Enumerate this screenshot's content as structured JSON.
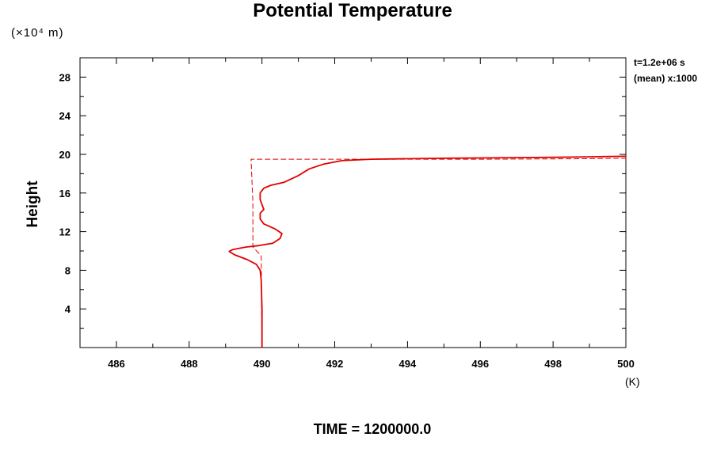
{
  "chart_data": {
    "type": "line",
    "title": "Potential Temperature",
    "ylabel": "Height",
    "y_unit": "(×10⁴ m)",
    "xunit": "(K)",
    "annotation_time": "t=1.2e+06 s",
    "annotation_mean": "(mean) x:1000",
    "footer": "TIME = 1200000.0",
    "xlim": [
      485,
      500
    ],
    "ylim": [
      0,
      30
    ],
    "x_ticks": [
      486,
      488,
      490,
      492,
      494,
      496,
      498,
      500
    ],
    "y_ticks": [
      4,
      8,
      12,
      16,
      20,
      24,
      28
    ],
    "grid": false,
    "colors": {
      "series": "#e00000",
      "axis": "#000000"
    },
    "series": [
      {
        "style": "solid",
        "points": [
          [
            490.0,
            0.0
          ],
          [
            490.0,
            4.0
          ],
          [
            489.98,
            7.0
          ],
          [
            489.95,
            8.0
          ],
          [
            489.85,
            8.6
          ],
          [
            489.6,
            9.1
          ],
          [
            489.25,
            9.6
          ],
          [
            489.1,
            9.95
          ],
          [
            489.2,
            10.15
          ],
          [
            489.55,
            10.4
          ],
          [
            489.9,
            10.55
          ],
          [
            490.3,
            10.8
          ],
          [
            490.5,
            11.3
          ],
          [
            490.55,
            11.8
          ],
          [
            490.35,
            12.3
          ],
          [
            490.05,
            12.8
          ],
          [
            489.95,
            13.3
          ],
          [
            489.95,
            13.9
          ],
          [
            490.05,
            14.3
          ],
          [
            490.0,
            14.8
          ],
          [
            489.95,
            15.3
          ],
          [
            489.95,
            16.0
          ],
          [
            490.05,
            16.5
          ],
          [
            490.25,
            16.8
          ],
          [
            490.6,
            17.1
          ],
          [
            491.0,
            17.8
          ],
          [
            491.3,
            18.5
          ],
          [
            491.7,
            19.0
          ],
          [
            492.2,
            19.35
          ],
          [
            493.0,
            19.5
          ],
          [
            494.0,
            19.55
          ],
          [
            495.0,
            19.6
          ],
          [
            496.0,
            19.63
          ],
          [
            497.0,
            19.66
          ],
          [
            498.0,
            19.7
          ],
          [
            499.0,
            19.75
          ],
          [
            500.0,
            19.8
          ]
        ]
      },
      {
        "style": "dashed",
        "points": [
          [
            490.0,
            0.0
          ],
          [
            489.98,
            9.5
          ],
          [
            489.75,
            10.4
          ],
          [
            489.75,
            15.0
          ],
          [
            489.7,
            19.5
          ],
          [
            491.5,
            19.5
          ],
          [
            493.0,
            19.5
          ],
          [
            496.0,
            19.5
          ],
          [
            499.0,
            19.55
          ],
          [
            500.0,
            19.6
          ]
        ]
      }
    ]
  }
}
